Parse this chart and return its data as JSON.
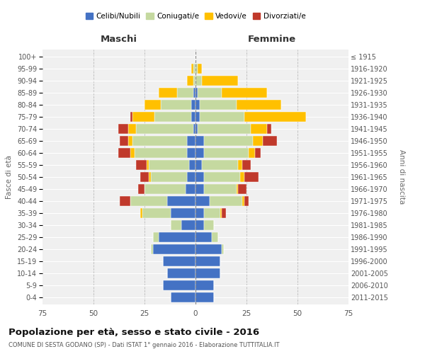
{
  "age_groups": [
    "0-4",
    "5-9",
    "10-14",
    "15-19",
    "20-24",
    "25-29",
    "30-34",
    "35-39",
    "40-44",
    "45-49",
    "50-54",
    "55-59",
    "60-64",
    "65-69",
    "70-74",
    "75-79",
    "80-84",
    "85-89",
    "90-94",
    "95-99",
    "100+"
  ],
  "birth_years": [
    "2011-2015",
    "2006-2010",
    "2001-2005",
    "1996-2000",
    "1991-1995",
    "1986-1990",
    "1981-1985",
    "1976-1980",
    "1971-1975",
    "1966-1970",
    "1961-1965",
    "1956-1960",
    "1951-1955",
    "1946-1950",
    "1941-1945",
    "1936-1940",
    "1931-1935",
    "1926-1930",
    "1921-1925",
    "1916-1920",
    "≤ 1915"
  ],
  "maschi_celibi": [
    12,
    16,
    14,
    16,
    21,
    18,
    7,
    12,
    14,
    5,
    4,
    3,
    4,
    4,
    1,
    2,
    2,
    1,
    0,
    0,
    0
  ],
  "maschi_coniugati": [
    0,
    0,
    0,
    0,
    1,
    3,
    5,
    14,
    18,
    20,
    18,
    20,
    26,
    27,
    28,
    18,
    15,
    8,
    1,
    1,
    0
  ],
  "maschi_vedovi": [
    0,
    0,
    0,
    0,
    0,
    0,
    0,
    1,
    0,
    0,
    1,
    1,
    2,
    2,
    4,
    11,
    8,
    9,
    3,
    1,
    0
  ],
  "maschi_divorziati": [
    0,
    0,
    0,
    0,
    0,
    0,
    0,
    0,
    5,
    3,
    4,
    5,
    6,
    4,
    5,
    1,
    0,
    0,
    0,
    0,
    0
  ],
  "femmine_celibi": [
    9,
    9,
    12,
    12,
    13,
    8,
    4,
    4,
    7,
    4,
    4,
    3,
    4,
    4,
    1,
    2,
    2,
    1,
    0,
    0,
    0
  ],
  "femmine_coniugati": [
    0,
    0,
    0,
    0,
    1,
    3,
    5,
    8,
    16,
    16,
    18,
    18,
    22,
    24,
    26,
    22,
    18,
    12,
    3,
    1,
    0
  ],
  "femmine_vedovi": [
    0,
    0,
    0,
    0,
    0,
    0,
    0,
    1,
    1,
    1,
    2,
    2,
    3,
    5,
    8,
    30,
    22,
    22,
    18,
    2,
    0
  ],
  "femmine_divorziati": [
    0,
    0,
    0,
    0,
    0,
    0,
    0,
    2,
    2,
    4,
    7,
    4,
    3,
    7,
    2,
    0,
    0,
    0,
    0,
    0,
    0
  ],
  "colors": {
    "celibi": "#4472c4",
    "coniugati": "#c5d9a0",
    "vedovi": "#ffc000",
    "divorziati": "#c0392b"
  },
  "legend_labels": [
    "Celibi/Nubili",
    "Coniugati/e",
    "Vedovi/e",
    "Divorziati/e"
  ],
  "title": "Popolazione per età, sesso e stato civile - 2016",
  "subtitle": "COMUNE DI SESTA GODANO (SP) - Dati ISTAT 1° gennaio 2016 - Elaborazione TUTTITALIA.IT",
  "xlabel_left": "Maschi",
  "xlabel_right": "Femmine",
  "ylabel_left": "Fasce di età",
  "ylabel_right": "Anni di nascita",
  "xlim": 75,
  "bg_color": "#ffffff",
  "grid_color": "#cccccc"
}
